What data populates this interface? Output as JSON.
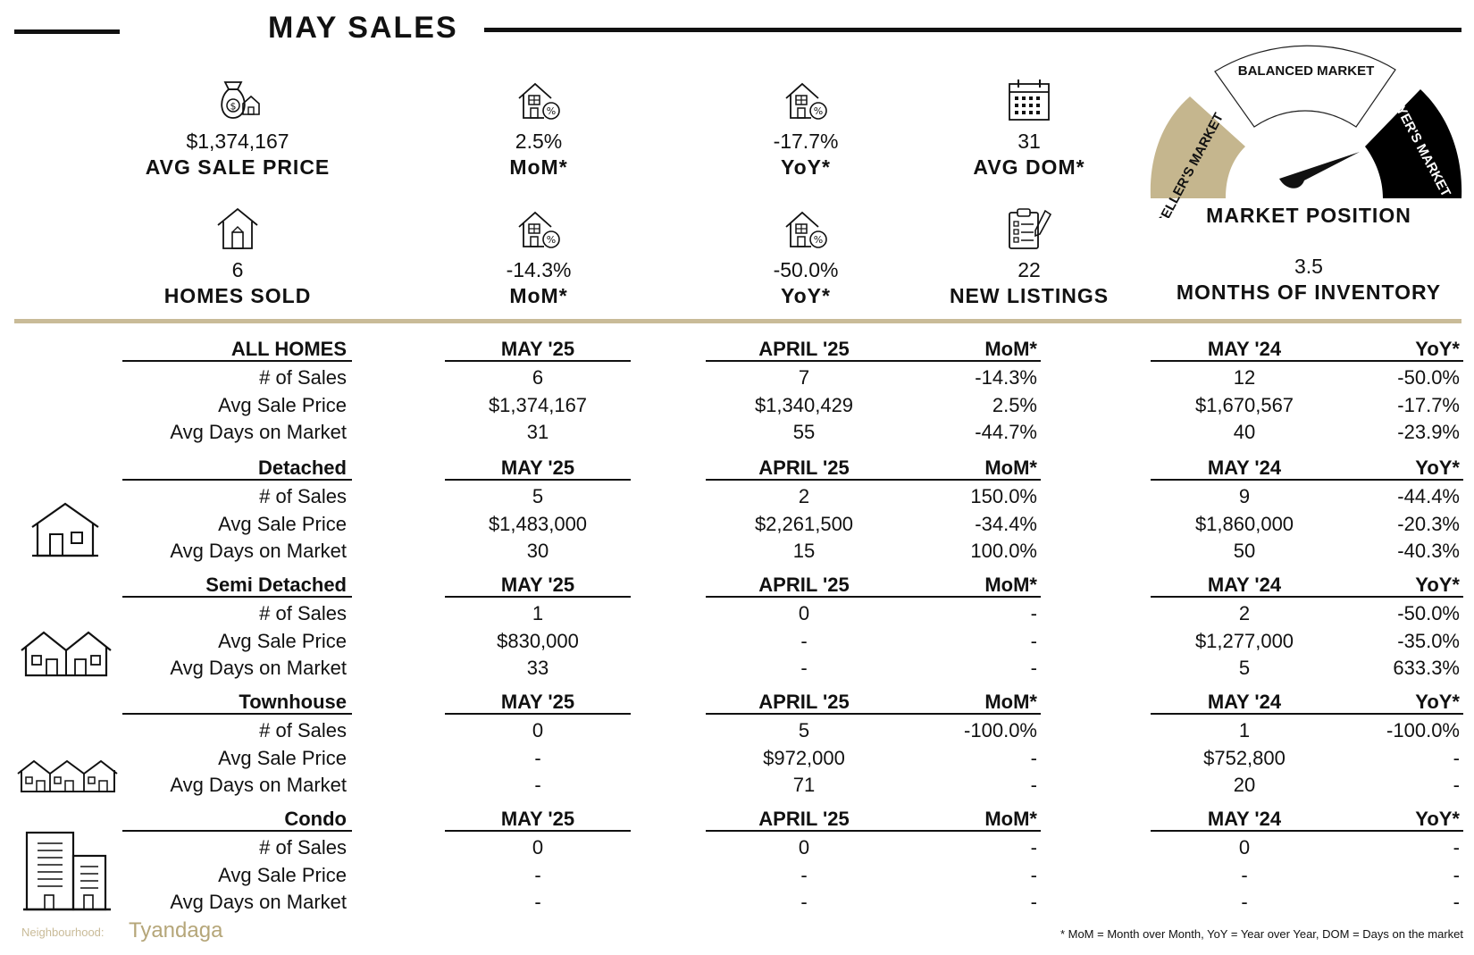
{
  "title": "MAY SALES",
  "stats_top": [
    {
      "icon": "money-bag-house-icon",
      "value": "$1,374,167",
      "label": "AVG SALE PRICE"
    },
    {
      "icon": "house-percent-icon",
      "value": "2.5%",
      "label": "MoM*"
    },
    {
      "icon": "house-percent-icon",
      "value": "-17.7%",
      "label": "YoY*"
    },
    {
      "icon": "calendar-icon",
      "value": "31",
      "label": "AVG DOM*"
    }
  ],
  "stats_bottom": [
    {
      "icon": "house-icon",
      "value": "6",
      "label": "HOMES SOLD"
    },
    {
      "icon": "house-percent-icon",
      "value": "-14.3%",
      "label": "MoM*"
    },
    {
      "icon": "house-percent-icon",
      "value": "-50.0%",
      "label": "YoY*"
    },
    {
      "icon": "clipboard-pencil-icon",
      "value": "22",
      "label": "NEW LISTINGS"
    }
  ],
  "market": {
    "gauge_labels": {
      "seller": "SELLER'S MARKET",
      "balanced": "BALANCED MARKET",
      "buyer": "BUYER'S MARKET"
    },
    "position_label": "MARKET POSITION",
    "months_inventory_value": "3.5",
    "months_inventory_label": "MONTHS OF INVENTORY",
    "colors": {
      "seller": "#c5b68e",
      "balanced": "#ffffff",
      "buyer": "#000000"
    }
  },
  "table": {
    "headers": {
      "may25": "MAY '25",
      "apr25": "APRIL '25",
      "mom": "MoM*",
      "may24": "MAY '24",
      "yoy": "YoY*"
    },
    "row_labels": [
      "# of Sales",
      "Avg Sale Price",
      "Avg Days on Market"
    ],
    "sections": [
      {
        "name": "ALL HOMES",
        "icon": "",
        "may25": [
          "6",
          "$1,374,167",
          "31"
        ],
        "apr25": [
          "7",
          "$1,340,429",
          "55"
        ],
        "mom": [
          "-14.3%",
          "2.5%",
          "-44.7%"
        ],
        "may24": [
          "12",
          "$1,670,567",
          "40"
        ],
        "yoy": [
          "-50.0%",
          "-17.7%",
          "-23.9%"
        ]
      },
      {
        "name": "Detached",
        "icon": "detached-house-icon",
        "may25": [
          "5",
          "$1,483,000",
          "30"
        ],
        "apr25": [
          "2",
          "$2,261,500",
          "15"
        ],
        "mom": [
          "150.0%",
          "-34.4%",
          "100.0%"
        ],
        "may24": [
          "9",
          "$1,860,000",
          "50"
        ],
        "yoy": [
          "-44.4%",
          "-20.3%",
          "-40.3%"
        ]
      },
      {
        "name": "Semi Detached",
        "icon": "semi-detached-house-icon",
        "may25": [
          "1",
          "$830,000",
          "33"
        ],
        "apr25": [
          "0",
          "-",
          "-"
        ],
        "mom": [
          "-",
          "-",
          "-"
        ],
        "may24": [
          "2",
          "$1,277,000",
          "5"
        ],
        "yoy": [
          "-50.0%",
          "-35.0%",
          "633.3%"
        ]
      },
      {
        "name": "Townhouse",
        "icon": "townhouse-icon",
        "may25": [
          "0",
          "-",
          "-"
        ],
        "apr25": [
          "5",
          "$972,000",
          "71"
        ],
        "mom": [
          "-100.0%",
          "-",
          "-"
        ],
        "may24": [
          "1",
          "$752,800",
          "20"
        ],
        "yoy": [
          "-100.0%",
          "-",
          "-"
        ]
      },
      {
        "name": "Condo",
        "icon": "condo-building-icon",
        "may25": [
          "0",
          "-",
          "-"
        ],
        "apr25": [
          "0",
          "-",
          "-"
        ],
        "mom": [
          "-",
          "-",
          "-"
        ],
        "may24": [
          "0",
          "-",
          "-"
        ],
        "yoy": [
          "-",
          "-",
          "-"
        ]
      }
    ]
  },
  "footer": {
    "neighbourhood_label": "Neighbourhood:",
    "neighbourhood_name": "Tyandaga",
    "footnote": "* MoM = Month over Month, YoY = Year over Year, DOM = Days on the market"
  }
}
